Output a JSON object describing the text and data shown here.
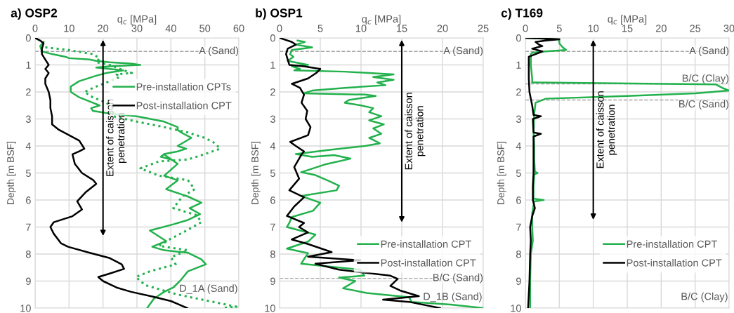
{
  "chart_data": [
    {
      "type": "line",
      "title": "a) OSP2",
      "xlabel": "q$_{c}$ [MPa]",
      "ylabel": "Depth [m BSF]",
      "xlim": [
        0,
        60
      ],
      "xticks": [
        0,
        10,
        20,
        30,
        40,
        50,
        60
      ],
      "ylim": [
        10,
        0
      ],
      "yticks": [
        0,
        1,
        2,
        3,
        4,
        5,
        6,
        7,
        8,
        9,
        10
      ],
      "grid": true,
      "legend": "top right",
      "line_style": "solid",
      "series": [
        {
          "name": "Pre-installation CPTs",
          "color": "#22b14c",
          "x": [
            2.5,
            1.5,
            2,
            5,
            9,
            10,
            16,
            18,
            22,
            28,
            31,
            22,
            18,
            22,
            26,
            21,
            18,
            13,
            10.5,
            10.5,
            13,
            17,
            19,
            16.5,
            17,
            22,
            30,
            38,
            42,
            42,
            43,
            46,
            44,
            42,
            44.5,
            42,
            38,
            37,
            40,
            38,
            42,
            38,
            42,
            38.6,
            45,
            49,
            45.5,
            48.6,
            45,
            40.7,
            33.8,
            38.6,
            34.5,
            38,
            45,
            49,
            50.3,
            45,
            42.8,
            40.7,
            38,
            35,
            33
          ],
          "values": [
            0.15,
            0.3,
            0.5,
            0.6,
            0.7,
            0.75,
            0.8,
            0.85,
            0.9,
            0.95,
            1.0,
            1.05,
            1.1,
            1.15,
            1.2,
            1.3,
            1.4,
            1.6,
            1.8,
            2.0,
            2.2,
            2.4,
            2.5,
            2.6,
            2.7,
            2.8,
            2.9,
            3.1,
            3.3,
            3.4,
            3.5,
            3.7,
            3.85,
            4.0,
            4.1,
            4.2,
            4.3,
            4.4,
            4.5,
            4.31,
            4.66,
            5.1,
            5.27,
            5.6,
            5.87,
            6.1,
            6.3,
            6.52,
            6.74,
            6.9,
            7.13,
            7.52,
            7.73,
            7.86,
            7.95,
            8.2,
            8.38,
            8.64,
            8.98,
            9.24,
            9.4,
            9.65,
            10
          ]
        },
        {
          "color": "#22b14c",
          "line_style": "dotted",
          "x": [
            3,
            10,
            17,
            19,
            18,
            22,
            24,
            26,
            28.5,
            24,
            25,
            22,
            18,
            14.5,
            17,
            21,
            23,
            23,
            23,
            30,
            38,
            45,
            50,
            53,
            54.5,
            50,
            45,
            36.5,
            31,
            36.5,
            45,
            47,
            43.4,
            40.7,
            47.6,
            49,
            44,
            40,
            36.5,
            45,
            40,
            41.4,
            33.8,
            29.7,
            32.4,
            42,
            51.7,
            59.3,
            55
          ],
          "values": [
            0.35,
            0.45,
            0.6,
            0.75,
            0.9,
            1.0,
            1.1,
            1.2,
            1.3,
            1.35,
            1.45,
            1.6,
            1.8,
            2.0,
            2.2,
            2.4,
            2.6,
            2.7,
            2.9,
            3.1,
            3.3,
            3.5,
            3.7,
            3.9,
            4.1,
            4.3,
            4.5,
            4.57,
            4.83,
            5.1,
            5.27,
            5.6,
            5.87,
            6.3,
            6.56,
            6.82,
            7.17,
            7.43,
            7.7,
            7.86,
            8.12,
            8.38,
            8.64,
            8.85,
            9.15,
            9.5,
            9.75,
            9.95,
            10
          ]
        },
        {
          "name": "Post-installation CPT",
          "color": "#000000",
          "x": [
            0,
            1.5,
            2.5,
            2,
            2,
            3,
            4,
            3,
            4,
            3,
            3,
            4,
            4.5,
            4.5,
            5,
            5,
            7,
            10,
            13,
            14,
            14.5,
            13,
            11,
            11.7,
            13.8,
            17.2,
            18,
            15,
            12.4,
            13.8,
            11,
            5.5,
            4.5,
            5.5,
            7.6,
            9.7,
            15.9,
            22,
            25.5,
            26.2,
            22,
            18.6,
            20,
            24,
            28.3,
            34.5,
            40,
            44.8
          ],
          "values": [
            0,
            0.1,
            0.2,
            0.4,
            0.6,
            0.8,
            1.0,
            1.15,
            1.3,
            1.5,
            1.7,
            2.0,
            2.3,
            2.6,
            2.9,
            3.2,
            3.4,
            3.6,
            3.8,
            4.0,
            4.1,
            4.2,
            4.31,
            4.66,
            5.0,
            5.27,
            5.4,
            5.7,
            6.05,
            6.35,
            6.6,
            6.82,
            7.0,
            7.25,
            7.6,
            7.73,
            7.95,
            8.15,
            8.38,
            8.55,
            8.72,
            8.85,
            9.0,
            9.24,
            9.4,
            9.57,
            9.74,
            10
          ]
        }
      ],
      "ref_lines": [
        {
          "axis": "y",
          "value": 0.5,
          "label": "A (Sand)",
          "color": "#a6a6a6",
          "line_style": "dashed"
        }
      ],
      "annotations": [
        "Extent of caisson\npenetration",
        "D_1A (Sand)"
      ]
    },
    {
      "type": "line",
      "title": "b) OSP1",
      "xlabel": "q$_{c}$ [MPa]",
      "ylabel": "Depth [m BSF]",
      "xlim": [
        0,
        25
      ],
      "xticks": [
        0,
        5,
        10,
        15,
        20,
        25
      ],
      "ylim": [
        10,
        0
      ],
      "yticks": [
        0,
        1,
        2,
        3,
        4,
        5,
        6,
        7,
        8,
        9,
        10
      ],
      "grid": true,
      "legend": "bottom right",
      "line_style": "solid",
      "series": [
        {
          "name": "Pre-installation CPT",
          "color": "#22b14c",
          "x": [
            2.2,
            3.1,
            2,
            4,
            1.5,
            1.3,
            1.7,
            1,
            3.5,
            1.5,
            2.5,
            1.8,
            8,
            14,
            11.5,
            14,
            12,
            13,
            8,
            4,
            3,
            10.5,
            11.8,
            8.5,
            8,
            10,
            11.5,
            11,
            12.5,
            11,
            12.8,
            11.5,
            12.5,
            11,
            12.3,
            10.5,
            6,
            2,
            4,
            6.7,
            8.7,
            5.5,
            3.8,
            2.65,
            4.4,
            6.1,
            7.3,
            7,
            2.65,
            5,
            4.1,
            1.5,
            1.2,
            0.9,
            4.4,
            3.5,
            0.9,
            3.5,
            3,
            2.65,
            9.9,
            10.4,
            7.3,
            9.3,
            7.8,
            10.7,
            15.9,
            16.2,
            21,
            25
          ],
          "values": [
            0.1,
            0.15,
            0.25,
            0.35,
            0.45,
            0.6,
            0.7,
            0.85,
            1.0,
            1.05,
            1.15,
            1.2,
            1.25,
            1.35,
            1.45,
            1.55,
            1.65,
            1.75,
            1.85,
            1.95,
            2.05,
            2.1,
            2.15,
            2.3,
            2.4,
            2.5,
            2.6,
            2.75,
            2.9,
            3.05,
            3.2,
            3.35,
            3.55,
            3.7,
            3.9,
            4.0,
            4.15,
            4.3,
            4.4,
            4.34,
            4.47,
            4.69,
            4.86,
            4.97,
            5.08,
            5.3,
            5.47,
            5.64,
            5.85,
            6.1,
            6.4,
            6.63,
            6.85,
            7.0,
            7.28,
            7.54,
            7.8,
            7.97,
            8.19,
            8.36,
            8.58,
            8.8,
            8.87,
            9.0,
            9.27,
            9.44,
            9.6,
            9.77,
            9.87,
            10
          ]
        },
        {
          "name": "Post-installation CPT",
          "color": "#000000",
          "x": [
            0,
            1.5,
            2,
            1,
            0.8,
            1,
            1.2,
            3,
            5,
            4.5,
            3.5,
            1.5,
            2.5,
            3,
            2.7,
            3.4,
            3.2,
            3.8,
            3.5,
            1.3,
            2,
            3,
            2.6,
            2.65,
            1.8,
            2.4,
            1.2,
            3,
            1.8,
            0.9,
            3,
            2.4,
            3.5,
            1.5,
            3.5,
            6.4,
            3.5,
            9.9,
            4.4,
            7.3,
            13.6,
            14.5,
            13.6,
            14.8,
            17.1,
            12.7,
            15.9,
            19.7
          ],
          "values": [
            0,
            0.15,
            0.25,
            0.4,
            0.6,
            0.8,
            1.0,
            1.05,
            1.15,
            1.3,
            1.5,
            1.7,
            1.85,
            2.1,
            2.4,
            2.7,
            3.0,
            3.3,
            3.6,
            3.85,
            4.0,
            4.2,
            4.35,
            4.34,
            4.78,
            5.21,
            5.64,
            5.9,
            6.24,
            6.59,
            6.85,
            7.0,
            7.2,
            7.46,
            7.63,
            7.93,
            8.1,
            8.23,
            8.36,
            8.58,
            8.8,
            8.92,
            9.18,
            9.35,
            9.56,
            9.69,
            9.77,
            10
          ]
        }
      ],
      "ref_lines": [
        {
          "axis": "y",
          "value": 0.5,
          "label": "A (Sand)",
          "color": "#a6a6a6",
          "line_style": "dashed"
        },
        {
          "axis": "y",
          "value": 8.9,
          "label": "B/C (Sand)",
          "color": "#a6a6a6",
          "line_style": "dashed"
        }
      ],
      "annotations": [
        "Extent of caisson\npenetration",
        "D_1B (Sand)"
      ]
    },
    {
      "type": "line",
      "title": "c) T169",
      "xlabel": "q$_{c}$ [MPa]",
      "ylabel": "Depth [m BSF]",
      "xlim": [
        0,
        30
      ],
      "xticks": [
        0,
        5,
        10,
        15,
        20,
        25,
        30
      ],
      "ylim": [
        10,
        0
      ],
      "yticks": [
        0,
        1,
        2,
        3,
        4,
        5,
        6,
        7,
        8,
        9,
        10
      ],
      "grid": true,
      "legend": "bottom right",
      "line_style": "solid",
      "series": [
        {
          "name": "Pre-installation CPT",
          "color": "#22b14c",
          "x": [
            0,
            5,
            5,
            5.5,
            6,
            3,
            1,
            0.8,
            0.8,
            1,
            1,
            28,
            29,
            30,
            25,
            15,
            3,
            1.5,
            1.3,
            1.2,
            1.3,
            1.3,
            1.4,
            1.8,
            1.3,
            1.2,
            1.2,
            2.7,
            1.3,
            1,
            1,
            1.1,
            0.8,
            0.7,
            0.7
          ],
          "values": [
            0,
            0.05,
            0.2,
            0.35,
            0.45,
            0.5,
            0.55,
            0.6,
            1.0,
            1.5,
            1.65,
            1.72,
            1.85,
            1.95,
            2.05,
            2.15,
            2.25,
            2.4,
            2.8,
            3.5,
            4.0,
            4.5,
            4.95,
            5.0,
            5.05,
            5.5,
            5.95,
            6.0,
            6.05,
            6.5,
            7.0,
            7.5,
            8.0,
            9.0,
            10
          ]
        },
        {
          "name": "Post-installation CPT",
          "color": "#000000",
          "x": [
            0,
            5,
            3,
            1.5,
            2,
            2.5,
            1,
            2.5,
            1.5,
            0.5,
            0.5,
            0.5,
            0.6,
            1,
            1.2,
            2.3,
            1.1,
            1.2,
            2.3,
            1.2,
            1.2,
            1.2,
            1.1,
            1.1,
            1.4,
            1,
            0.7,
            0.8,
            0.7,
            0.6,
            0.4
          ],
          "values": [
            0,
            0.05,
            0.1,
            0.15,
            0.25,
            0.3,
            0.4,
            0.5,
            0.6,
            0.7,
            1.0,
            1.5,
            2.0,
            2.5,
            2.85,
            2.9,
            3.0,
            3.5,
            3.55,
            3.65,
            4.0,
            5.0,
            5.5,
            6.0,
            6.3,
            6.6,
            7.0,
            7.5,
            8.0,
            9.0,
            10
          ]
        }
      ],
      "ref_lines": [
        {
          "axis": "y",
          "value": 0.5,
          "label": "A (Sand)",
          "color": "#a6a6a6",
          "line_style": "dashed"
        },
        {
          "axis": "y",
          "value": 1.7,
          "label": "B/C (Clay)",
          "color": "#a6a6a6",
          "line_style": "dashed"
        },
        {
          "axis": "y",
          "value": 2.3,
          "label": "B/C (Sand)",
          "color": "#a6a6a6",
          "line_style": "dashed"
        }
      ],
      "annotations": [
        "Extent of caisson\npenetration",
        "B/C (Clay)"
      ]
    }
  ]
}
